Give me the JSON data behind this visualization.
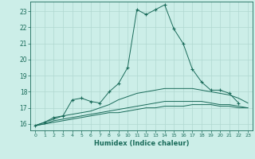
{
  "xlabel": "Humidex (Indice chaleur)",
  "ylabel": "",
  "bg_color": "#cceee8",
  "grid_color": "#b0d8d0",
  "line_color": "#1a6b5a",
  "xlim": [
    -0.5,
    23.5
  ],
  "ylim": [
    15.6,
    23.6
  ],
  "xticks": [
    0,
    1,
    2,
    3,
    4,
    5,
    6,
    7,
    8,
    9,
    10,
    11,
    12,
    13,
    14,
    15,
    16,
    17,
    18,
    19,
    20,
    21,
    22,
    23
  ],
  "yticks": [
    16,
    17,
    18,
    19,
    20,
    21,
    22,
    23
  ],
  "series": [
    {
      "x": [
        0,
        1,
        2,
        3,
        4,
        5,
        6,
        7,
        8,
        9,
        10,
        11,
        12,
        13,
        14,
        15,
        16,
        17,
        18,
        19,
        20,
        21,
        22
      ],
      "y": [
        15.9,
        16.1,
        16.4,
        16.5,
        17.5,
        17.6,
        17.4,
        17.3,
        18.0,
        18.5,
        19.5,
        23.1,
        22.8,
        23.1,
        23.4,
        21.9,
        21.0,
        19.4,
        18.6,
        18.1,
        18.1,
        17.9,
        17.3
      ],
      "marker": "+"
    },
    {
      "x": [
        0,
        1,
        2,
        3,
        4,
        5,
        6,
        7,
        8,
        9,
        10,
        11,
        12,
        13,
        14,
        15,
        16,
        17,
        18,
        19,
        20,
        21,
        22,
        23
      ],
      "y": [
        15.9,
        16.1,
        16.3,
        16.5,
        16.6,
        16.7,
        16.8,
        17.0,
        17.2,
        17.5,
        17.7,
        17.9,
        18.0,
        18.1,
        18.2,
        18.2,
        18.2,
        18.2,
        18.1,
        18.0,
        17.9,
        17.8,
        17.6,
        17.3
      ],
      "marker": null
    },
    {
      "x": [
        0,
        1,
        2,
        3,
        4,
        5,
        6,
        7,
        8,
        9,
        10,
        11,
        12,
        13,
        14,
        15,
        16,
        17,
        18,
        19,
        20,
        21,
        22,
        23
      ],
      "y": [
        15.9,
        16.0,
        16.2,
        16.3,
        16.4,
        16.5,
        16.6,
        16.7,
        16.8,
        16.9,
        17.0,
        17.1,
        17.2,
        17.3,
        17.4,
        17.4,
        17.4,
        17.4,
        17.4,
        17.3,
        17.2,
        17.2,
        17.1,
        17.0
      ],
      "marker": null
    },
    {
      "x": [
        0,
        1,
        2,
        3,
        4,
        5,
        6,
        7,
        8,
        9,
        10,
        11,
        12,
        13,
        14,
        15,
        16,
        17,
        18,
        19,
        20,
        21,
        22,
        23
      ],
      "y": [
        15.9,
        16.0,
        16.1,
        16.2,
        16.3,
        16.4,
        16.5,
        16.6,
        16.7,
        16.7,
        16.8,
        16.9,
        17.0,
        17.0,
        17.1,
        17.1,
        17.1,
        17.2,
        17.2,
        17.2,
        17.1,
        17.1,
        17.0,
        17.0
      ],
      "marker": null
    }
  ]
}
